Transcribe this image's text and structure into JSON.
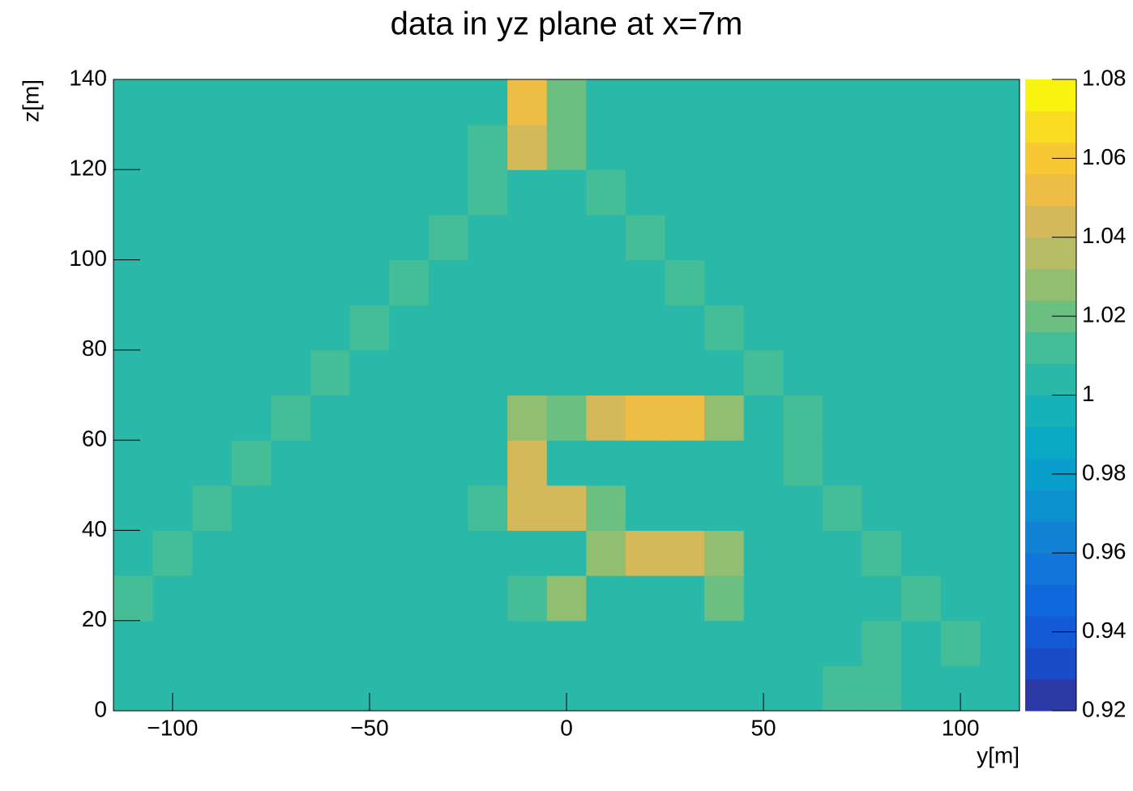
{
  "chart_data": {
    "type": "heatmap",
    "title": "data in yz plane at x=7m",
    "xlabel": "y[m]",
    "ylabel": "z[m]",
    "xlim": [
      -115,
      115
    ],
    "ylim": [
      0,
      140
    ],
    "zlim": [
      0.92,
      1.08
    ],
    "xticks": [
      {
        "value": -100,
        "label": "−100"
      },
      {
        "value": -50,
        "label": "−50"
      },
      0,
      50,
      100
    ],
    "yticks": [
      0,
      20,
      40,
      60,
      80,
      100,
      120,
      140
    ],
    "zticks": [
      0.92,
      0.94,
      0.96,
      0.98,
      1,
      1.02,
      1.04,
      1.06,
      1.08
    ],
    "xbins": [
      -115,
      -105,
      -95,
      -85,
      -75,
      -65,
      -55,
      -45,
      -35,
      -25,
      -15,
      -5,
      5,
      15,
      25,
      35,
      45,
      55,
      65,
      75,
      85,
      95,
      105,
      115
    ],
    "ybins": [
      0,
      10,
      20,
      30,
      40,
      50,
      60,
      70,
      80,
      90,
      100,
      110,
      120,
      130,
      140
    ],
    "colors": [
      "#2c3aa6",
      "#1a4cc8",
      "#1459d6",
      "#0f68dc",
      "#1275da",
      "#1283d4",
      "#0e91cf",
      "#0a9ecc",
      "#09a8c5",
      "#16b1b9",
      "#2ab8a8",
      "#45bd96",
      "#6bbf81",
      "#92be72",
      "#b6bb65",
      "#d4b95a",
      "#edbd45",
      "#f8c834",
      "#f8dc22",
      "#f9f310"
    ],
    "z": [
      [
        1,
        1,
        1,
        1,
        1,
        1,
        1,
        1,
        1,
        1,
        1,
        1,
        1,
        1,
        1,
        1,
        1,
        1,
        1.01,
        1.01,
        1,
        1,
        1
      ],
      [
        1,
        1,
        1,
        1,
        1,
        1,
        1,
        1,
        1,
        1,
        1,
        1,
        1,
        1,
        1,
        1,
        1,
        1,
        1,
        1.01,
        1,
        1.01,
        1
      ],
      [
        1.01,
        1,
        1,
        1,
        1,
        1,
        1,
        1,
        1,
        1,
        1.01,
        1.03,
        1,
        1,
        1,
        1.02,
        1,
        1,
        1,
        1,
        1.01,
        1,
        1
      ],
      [
        1,
        1.01,
        1,
        1,
        1,
        1,
        1,
        1,
        1,
        1,
        1,
        1,
        1.03,
        1.04,
        1.04,
        1.03,
        1,
        1,
        1,
        1.01,
        1,
        1,
        1
      ],
      [
        1,
        1,
        1.01,
        1,
        1,
        1,
        1,
        1,
        1,
        1.01,
        1.04,
        1.04,
        1.02,
        1,
        1,
        1,
        1,
        1,
        1.01,
        1,
        1,
        1,
        1
      ],
      [
        1,
        1,
        1,
        1.01,
        1,
        1,
        1,
        1,
        1,
        1,
        1.04,
        1,
        1,
        1,
        1,
        1,
        1,
        1.01,
        1,
        1,
        1,
        1,
        1
      ],
      [
        1,
        1,
        1,
        1,
        1.01,
        1,
        1,
        1,
        1,
        1,
        1.03,
        1.02,
        1.04,
        1.05,
        1.05,
        1.03,
        1,
        1.01,
        1,
        1,
        1,
        1,
        1
      ],
      [
        1,
        1,
        1,
        1,
        1,
        1.01,
        1,
        1,
        1,
        1,
        1,
        1,
        1,
        1,
        1,
        1,
        1.01,
        1,
        1,
        1,
        1,
        1,
        1
      ],
      [
        1,
        1,
        1,
        1,
        1,
        1,
        1.01,
        1,
        1,
        1,
        1,
        1,
        1,
        1,
        1,
        1.01,
        1,
        1,
        1,
        1,
        1,
        1,
        1
      ],
      [
        1,
        1,
        1,
        1,
        1,
        1,
        1,
        1.01,
        1,
        1,
        1,
        1,
        1,
        1,
        1.01,
        1,
        1,
        1,
        1,
        1,
        1,
        1,
        1
      ],
      [
        1,
        1,
        1,
        1,
        1,
        1,
        1,
        1,
        1.01,
        1,
        1,
        1,
        1,
        1.01,
        1,
        1,
        1,
        1,
        1,
        1,
        1,
        1,
        1
      ],
      [
        1,
        1,
        1,
        1,
        1,
        1,
        1,
        1,
        1,
        1.01,
        1,
        1,
        1.01,
        1,
        1,
        1,
        1,
        1,
        1,
        1,
        1,
        1,
        1
      ],
      [
        1,
        1,
        1,
        1,
        1,
        1,
        1,
        1,
        1,
        1.01,
        1.04,
        1.02,
        1,
        1,
        1,
        1,
        1,
        1,
        1,
        1,
        1,
        1,
        1
      ],
      [
        1,
        1,
        1,
        1,
        1,
        1,
        1,
        1,
        1,
        1,
        1.05,
        1.02,
        1,
        1,
        1,
        1,
        1,
        1,
        1,
        1,
        1,
        1,
        1
      ]
    ]
  }
}
